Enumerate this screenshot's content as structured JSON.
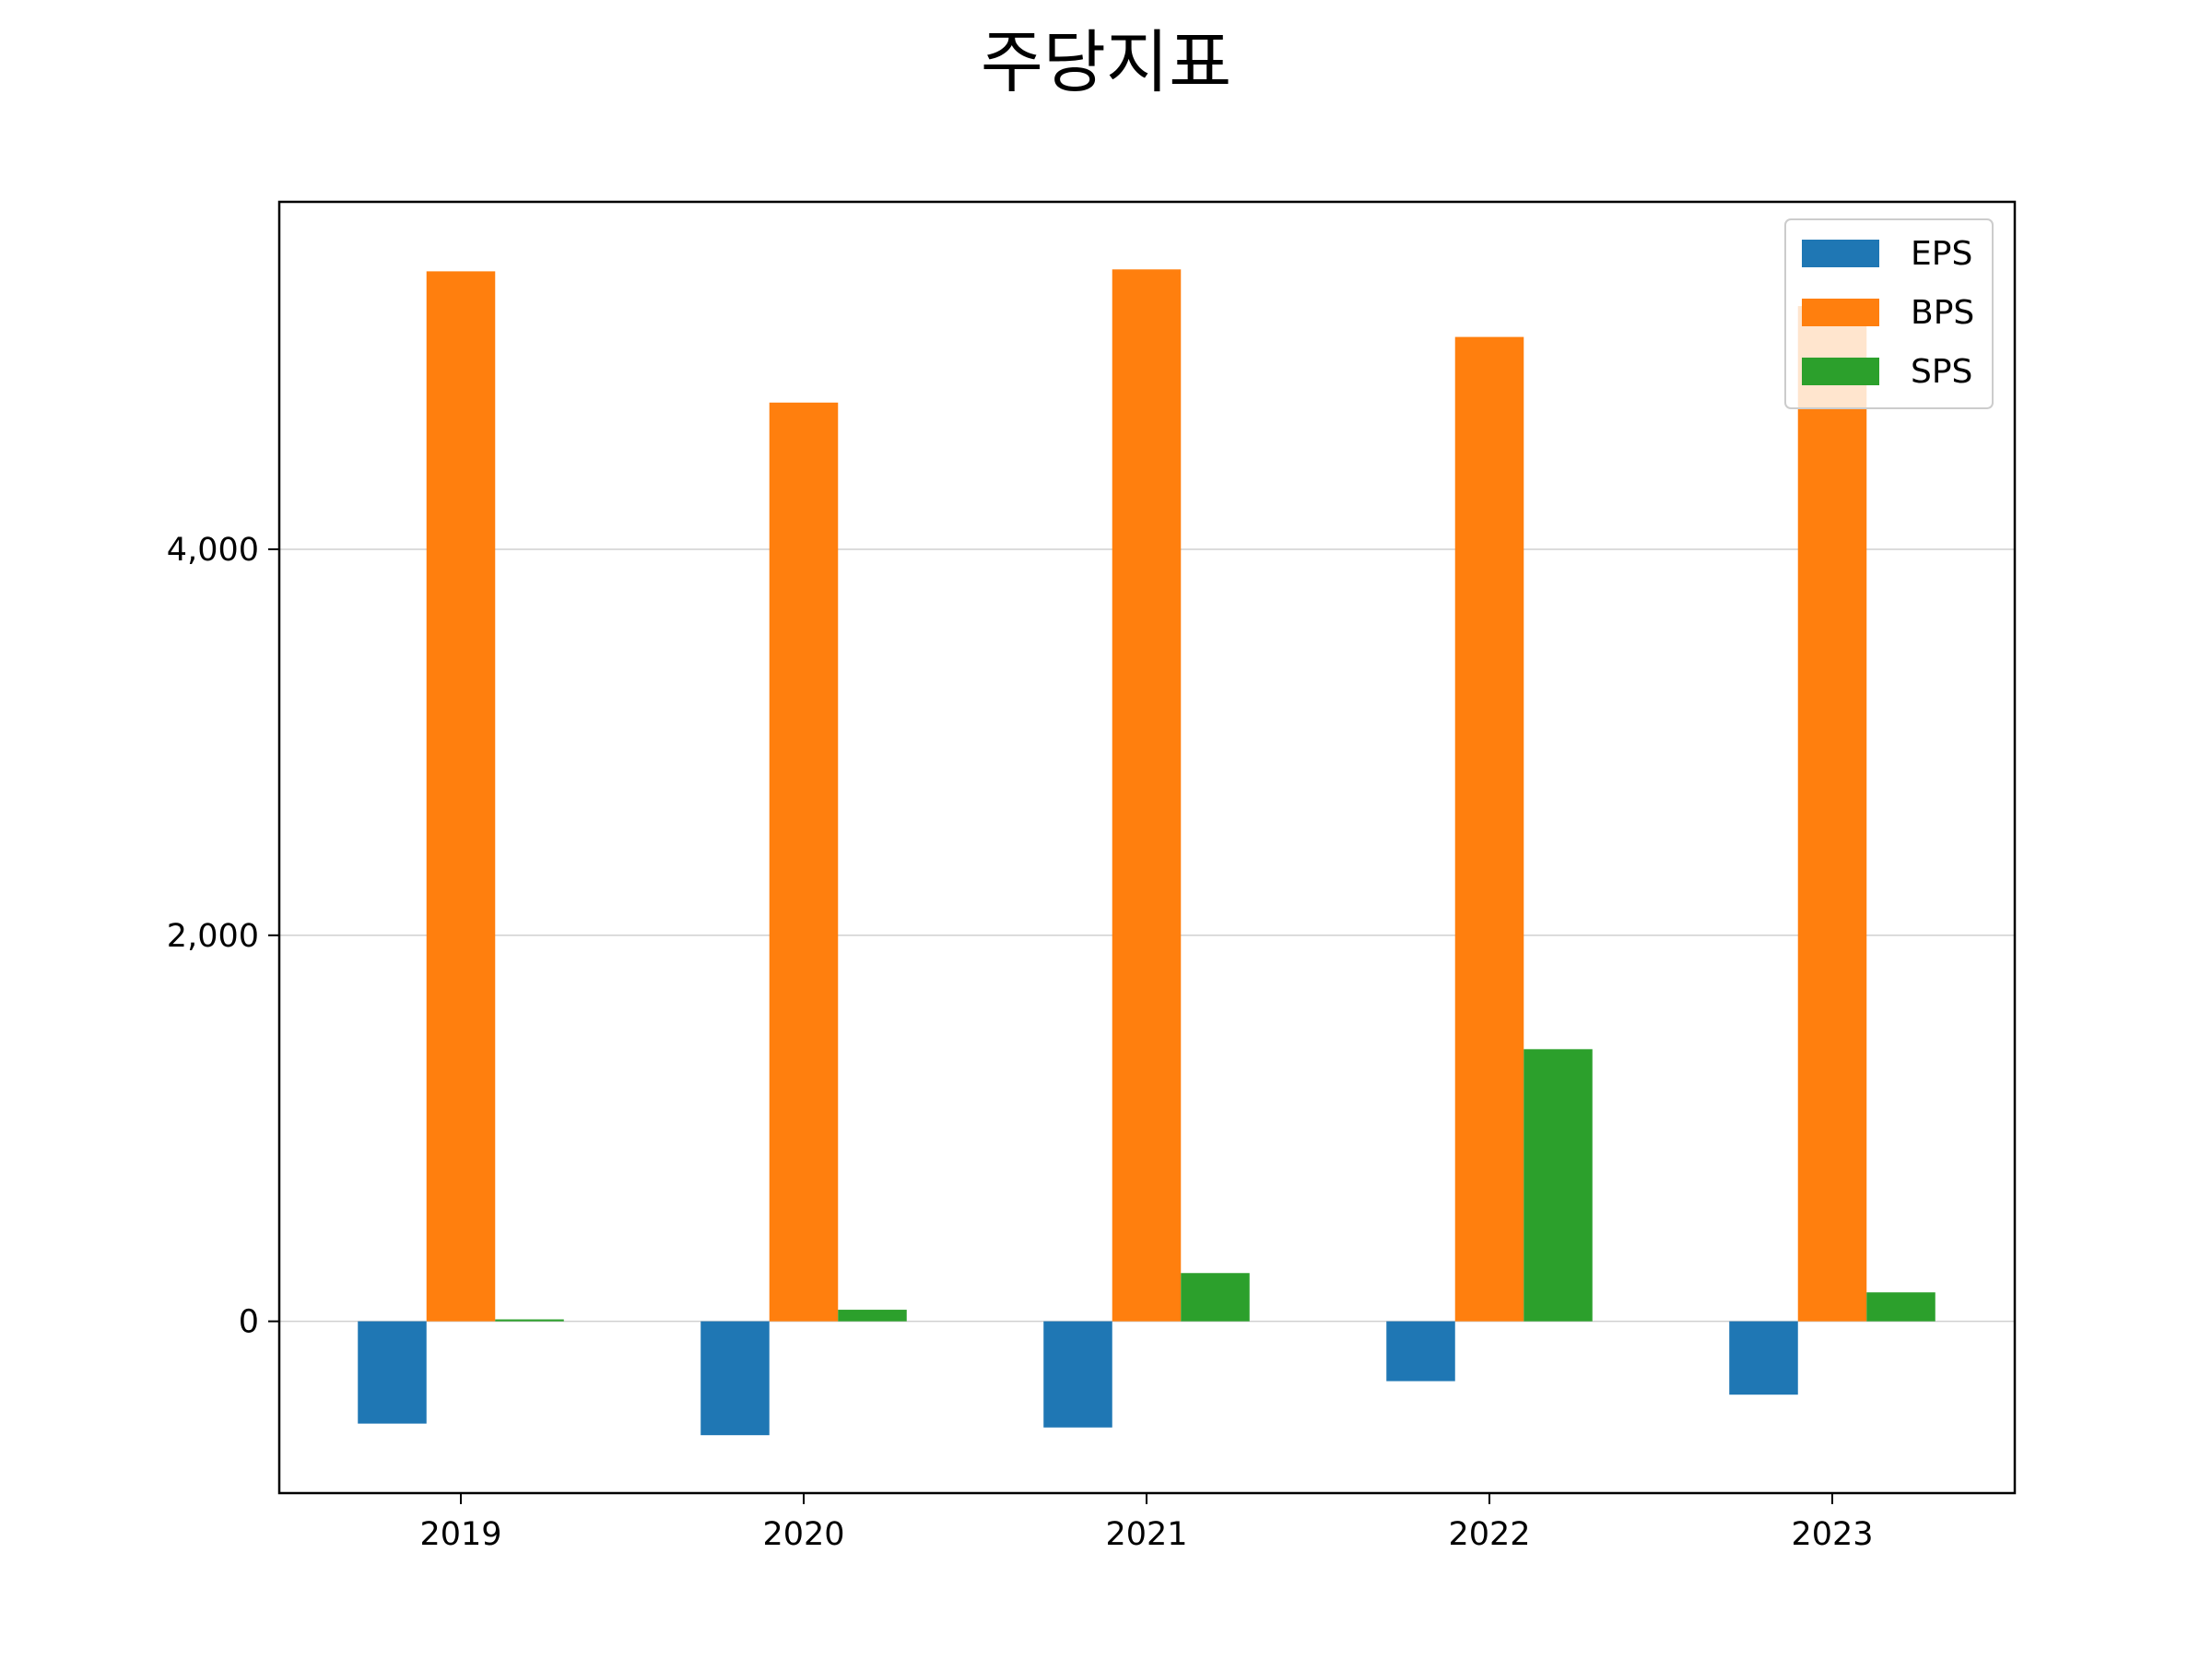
{
  "chart_data": {
    "type": "bar",
    "title": "주당지표",
    "xlabel": "",
    "ylabel": "",
    "categories": [
      "2019",
      "2020",
      "2021",
      "2022",
      "2023"
    ],
    "series": [
      {
        "name": "EPS",
        "color": "#1f77b4",
        "values": [
          -530,
          -590,
          -550,
          -310,
          -380
        ]
      },
      {
        "name": "BPS",
        "color": "#ff7f0e",
        "values": [
          5440,
          4760,
          5450,
          5100,
          5260
        ]
      },
      {
        "name": "SPS",
        "color": "#2ca02c",
        "values": [
          10,
          60,
          250,
          1410,
          150
        ]
      }
    ],
    "ylim": [
      -890,
      5800
    ],
    "yticks": [
      0,
      2000,
      4000
    ],
    "ytick_labels": [
      "0",
      "2,000",
      "4,000"
    ],
    "grid": "horizontal",
    "legend_position": "top-right"
  }
}
